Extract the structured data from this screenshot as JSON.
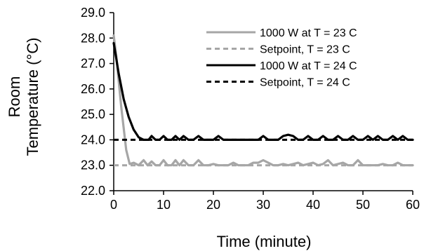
{
  "chart_data": {
    "type": "line",
    "title": "",
    "xlabel": "Time (minute)",
    "ylabel_line1": "Room",
    "ylabel_line2": "Temperature (°C)",
    "xlim": [
      0,
      60
    ],
    "ylim": [
      22.0,
      29.0
    ],
    "x_ticks": [
      0,
      10,
      20,
      30,
      40,
      50,
      60
    ],
    "x_tick_labels": [
      "0",
      "10",
      "20",
      "30",
      "40",
      "50",
      "60"
    ],
    "y_ticks": [
      22,
      23,
      24,
      25,
      26,
      27,
      28,
      29
    ],
    "y_tick_labels": [
      "22.0",
      "23.0",
      "24.0",
      "25.0",
      "26.0",
      "27.0",
      "28.0",
      "29.0"
    ],
    "grid": false,
    "legend_position": "top-right",
    "series": [
      {
        "name": "1000 W at T = 23 C",
        "color": "#a6a6a6",
        "dash": "solid",
        "x": [
          0,
          0.5,
          1.5,
          2.5,
          3.2,
          4,
          5,
          6,
          6.8,
          7.6,
          8.4,
          9.2,
          10,
          10.8,
          11.6,
          12.4,
          13.2,
          14,
          15,
          16,
          17,
          18,
          19,
          20,
          21,
          22,
          23,
          24,
          25,
          26,
          27,
          28,
          29,
          30,
          31,
          32,
          33,
          34,
          35,
          36,
          37,
          38,
          39,
          40,
          41,
          42,
          43,
          44,
          45,
          46,
          47,
          48,
          49,
          50,
          51,
          52,
          53,
          54,
          55,
          56,
          57,
          58,
          59,
          60
        ],
        "y": [
          28.1,
          27.3,
          25.3,
          23.6,
          23.05,
          23.1,
          23.0,
          23.2,
          23.0,
          23.15,
          23.0,
          23.0,
          23.2,
          23.0,
          23.0,
          23.2,
          23.0,
          23.2,
          23.0,
          23.0,
          23.2,
          23.0,
          23.0,
          23.05,
          23.0,
          23.0,
          23.0,
          23.1,
          23.0,
          23.0,
          23.0,
          23.1,
          23.1,
          23.2,
          23.1,
          23.0,
          23.0,
          23.05,
          23.0,
          23.05,
          23.1,
          23.0,
          23.05,
          23.1,
          23.0,
          23.05,
          23.2,
          23.0,
          23.05,
          23.1,
          23.0,
          23.0,
          23.2,
          23.0,
          23.0,
          23.0,
          23.0,
          23.05,
          23.0,
          23.0,
          23.1,
          23.0,
          23.0,
          23.0
        ]
      },
      {
        "name": "Setpoint, T = 23 C",
        "color": "#a6a6a6",
        "dash": "dashed",
        "x": [
          0,
          60
        ],
        "y": [
          23.0,
          23.0
        ]
      },
      {
        "name": "1000 W at T = 24 C",
        "color": "#000000",
        "dash": "solid",
        "x": [
          0,
          0.5,
          1,
          2,
          3,
          4,
          5,
          6,
          7,
          7.6,
          8.4,
          9.2,
          10,
          10.8,
          11.6,
          12.4,
          13.2,
          14,
          15,
          16,
          17,
          18,
          19,
          20,
          21,
          22,
          23,
          24,
          25,
          26,
          27,
          28,
          29,
          30,
          31,
          32,
          33,
          34,
          35,
          36,
          37,
          38,
          39,
          40,
          41,
          42,
          43,
          44,
          45,
          46,
          47,
          48,
          49,
          50,
          51,
          52,
          53,
          54,
          55,
          56,
          57,
          58,
          59,
          60
        ],
        "y": [
          27.8,
          27.2,
          26.6,
          25.6,
          24.9,
          24.4,
          24.1,
          24.0,
          24.0,
          24.15,
          24.0,
          24.0,
          24.15,
          24.0,
          24.0,
          24.15,
          24.0,
          24.15,
          24.0,
          24.0,
          24.15,
          24.0,
          24.0,
          24.0,
          24.15,
          24.0,
          24.0,
          24.0,
          24.0,
          24.0,
          24.0,
          24.0,
          24.0,
          24.15,
          24.0,
          24.0,
          24.0,
          24.15,
          24.2,
          24.15,
          24.0,
          24.0,
          24.15,
          24.0,
          24.0,
          24.15,
          24.0,
          24.0,
          24.15,
          24.0,
          24.0,
          24.15,
          24.0,
          24.0,
          24.15,
          24.0,
          24.15,
          24.0,
          24.0,
          24.15,
          24.0,
          24.15,
          24.0,
          24.0
        ]
      },
      {
        "name": "Setpoint, T = 24 C",
        "color": "#000000",
        "dash": "dashed",
        "x": [
          0,
          60
        ],
        "y": [
          24.0,
          24.0
        ]
      }
    ]
  }
}
